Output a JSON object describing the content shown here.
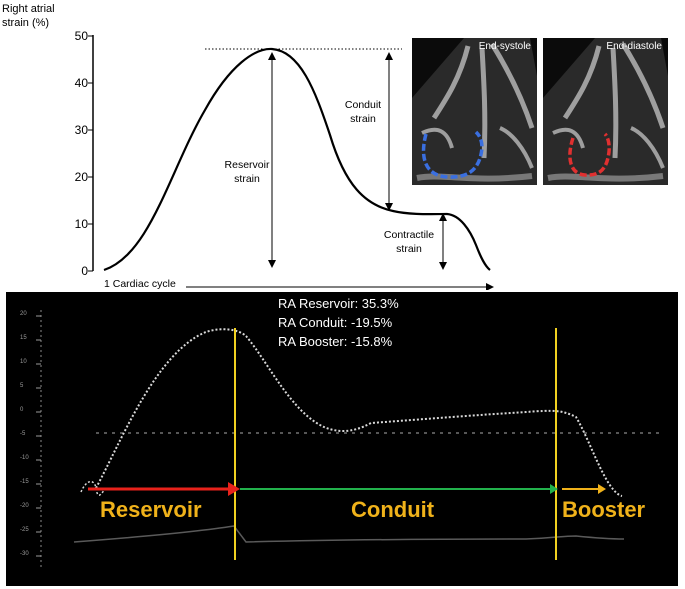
{
  "top_panel": {
    "y_axis_title_line1": "Right atrial",
    "y_axis_title_line2": "strain (%)",
    "y_ticks": [
      "50",
      "40",
      "30",
      "20",
      "10",
      "0"
    ],
    "x_label": "1 Cardiac cycle",
    "annotations": {
      "reservoir_line1": "Reservoir",
      "reservoir_line2": "strain",
      "conduit_line1": "Conduit",
      "conduit_line2": "strain",
      "contractile_line1": "Contractile",
      "contractile_line2": "strain"
    },
    "echo_images": [
      {
        "label": "End-systole",
        "contour_color": "#3a6fe0"
      },
      {
        "label": "End-diastole",
        "contour_color": "#e03030"
      }
    ],
    "curve_color": "#000000"
  },
  "bottom_panel": {
    "stats": {
      "reservoir": "RA Reservoir: 35.3%",
      "conduit": "RA Conduit: -19.5%",
      "booster": "RA Booster: -15.8%"
    },
    "phases": {
      "reservoir": "Reservoir",
      "conduit": "Conduit",
      "booster": "Booster"
    },
    "arrow_colors": {
      "reservoir": "#e8221b",
      "conduit": "#22b24c",
      "booster": "#f0b21a"
    },
    "marker_color": "#f0d020",
    "phase_text_color": "#f0b21a",
    "scale_ticks": [
      "20",
      "15",
      "10",
      "5",
      "0",
      "-5",
      "-10",
      "-15",
      "-20",
      "-25",
      "-30"
    ]
  }
}
